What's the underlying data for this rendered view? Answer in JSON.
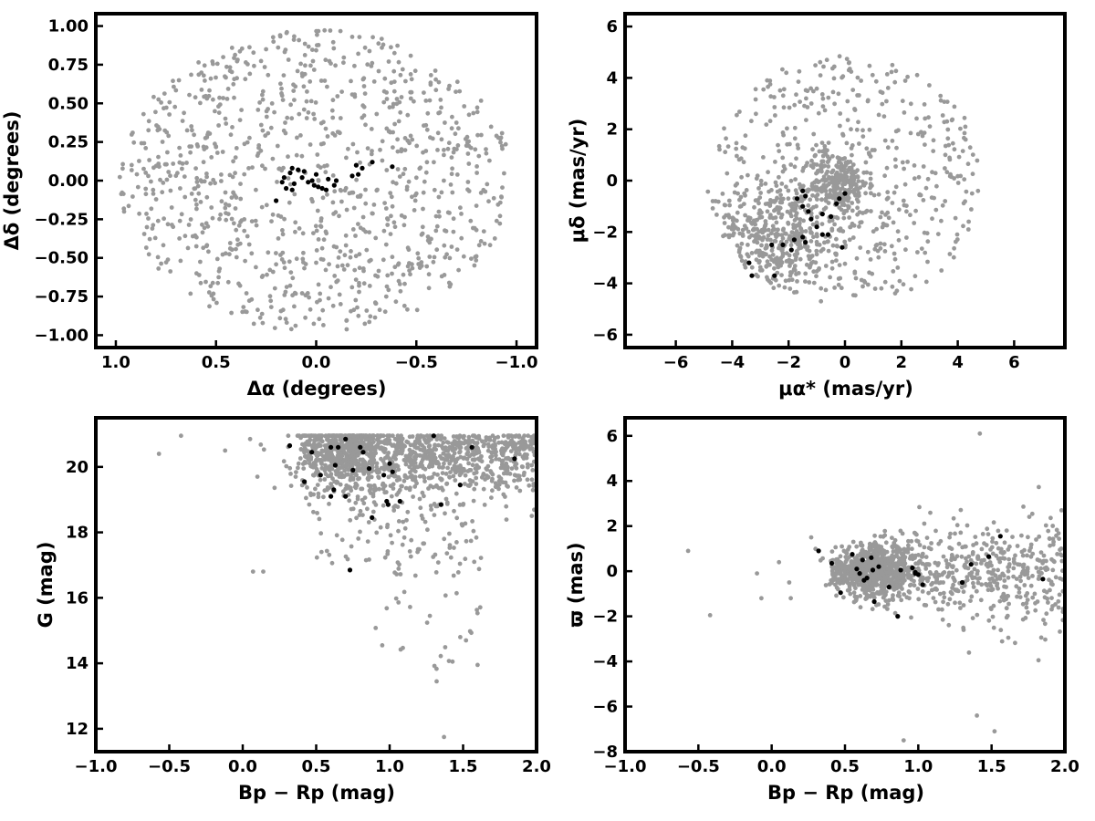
{
  "colors": {
    "field_points": "#999999",
    "member_points": "#000000",
    "axes": "#000000"
  },
  "chart_data": [
    {
      "type": "scatter",
      "title": "",
      "xlabel": "Δα (degrees)",
      "ylabel": "Δδ (degrees)",
      "xlim": [
        1.1,
        -1.1
      ],
      "ylim": [
        -1.08,
        1.08
      ],
      "x_reversed": true,
      "xticks": [
        1.0,
        0.5,
        0.0,
        -0.5,
        -1.0
      ],
      "xtick_labels": [
        "1.0",
        "0.5",
        "0.0",
        "−0.5",
        "−1.0"
      ],
      "yticks": [
        1.0,
        0.75,
        0.5,
        0.25,
        0.0,
        -0.25,
        -0.5,
        -0.75,
        -1.0
      ],
      "ytick_labels": [
        "1.00",
        "0.75",
        "0.50",
        "0.25",
        "0.00",
        "−0.25",
        "−0.50",
        "−0.75",
        "−1.00"
      ],
      "grid": false,
      "series": [
        {
          "role": "field",
          "color": "#999999",
          "x": [],
          "y": []
        },
        {
          "role": "members",
          "color": "#000000",
          "x": [
            0.17,
            0.15,
            0.13,
            0.12,
            0.09,
            0.07,
            0.06,
            0.04,
            0.02,
            0.01,
            0.0,
            -0.03,
            -0.05,
            -0.06,
            -0.09,
            -0.1,
            -0.18,
            -0.2,
            -0.21,
            -0.23,
            -0.28,
            -0.38,
            0.12,
            0.16,
            0.11,
            -0.01,
            0.2
          ],
          "y": [
            -0.01,
            -0.05,
            0.05,
            0.08,
            0.07,
            0.02,
            0.06,
            -0.01,
            0.0,
            -0.03,
            0.04,
            -0.05,
            -0.06,
            0.01,
            -0.03,
            0.0,
            0.03,
            0.1,
            0.04,
            0.08,
            0.12,
            0.09,
            -0.06,
            0.02,
            -0.02,
            -0.04,
            -0.13
          ]
        }
      ]
    },
    {
      "type": "scatter",
      "title": "",
      "xlabel": "μα* (mas/yr)",
      "ylabel": "μδ (mas/yr)",
      "xlim": [
        -7.8,
        7.8
      ],
      "ylim": [
        -6.5,
        6.5
      ],
      "xticks": [
        -6,
        -4,
        -2,
        0,
        2,
        4,
        6
      ],
      "xtick_labels": [
        "−6",
        "−4",
        "−2",
        "0",
        "2",
        "4",
        "6"
      ],
      "yticks": [
        6,
        4,
        2,
        0,
        -2,
        -4,
        -6
      ],
      "ytick_labels": [
        "6",
        "4",
        "2",
        "0",
        "−2",
        "−4",
        "−6"
      ],
      "grid": false,
      "series": [
        {
          "role": "field",
          "color": "#999999",
          "x": [],
          "y": []
        },
        {
          "role": "members",
          "color": "#000000",
          "x": [
            -1.7,
            -1.5,
            -1.4,
            -1.3,
            -1.2,
            -1.5,
            -1.0,
            -0.8,
            -0.5,
            -0.3,
            -0.2,
            0.0,
            -0.1,
            -1.8,
            -2.2,
            -2.5,
            -3.3,
            -3.4,
            -1.9,
            -1.4,
            -0.8,
            -0.6,
            -1.5,
            -2.6
          ],
          "y": [
            -0.7,
            -0.4,
            -0.6,
            -1.2,
            -1.5,
            -2.2,
            -1.8,
            -1.3,
            -1.4,
            -0.9,
            -0.7,
            -0.5,
            -2.6,
            -2.3,
            -2.5,
            -3.7,
            -3.7,
            -3.2,
            -2.7,
            -2.4,
            -2.1,
            -2.1,
            -1.0,
            -2.5
          ]
        }
      ]
    },
    {
      "type": "scatter",
      "title": "",
      "xlabel": "Bp − Rp (mag)",
      "ylabel": "G (mag)",
      "xlim": [
        -1.0,
        2.0
      ],
      "ylim": [
        11.3,
        21.5
      ],
      "xticks": [
        -1.0,
        -0.5,
        0.0,
        0.5,
        1.0,
        1.5,
        2.0
      ],
      "xtick_labels": [
        "−1.0",
        "−0.5",
        "0.0",
        "0.5",
        "1.0",
        "1.5",
        "2.0"
      ],
      "yticks": [
        12,
        14,
        16,
        18,
        20
      ],
      "ytick_labels": [
        "12",
        "14",
        "16",
        "18",
        "20"
      ],
      "grid": false,
      "series": [
        {
          "role": "field",
          "color": "#999999",
          "x": [],
          "y": []
        },
        {
          "role": "members",
          "color": "#000000",
          "x": [
            0.32,
            0.47,
            0.53,
            0.6,
            0.62,
            0.63,
            0.65,
            0.7,
            0.73,
            0.75,
            0.8,
            0.82,
            0.86,
            0.88,
            0.96,
            0.98,
            0.99,
            1.0,
            1.02,
            1.07,
            1.3,
            1.35,
            1.48,
            1.56,
            1.85,
            0.42,
            0.6,
            0.7
          ],
          "y": [
            20.65,
            20.45,
            19.75,
            20.6,
            19.3,
            20.05,
            20.6,
            20.85,
            16.85,
            19.9,
            20.6,
            20.45,
            19.95,
            18.45,
            19.75,
            18.95,
            18.85,
            20.1,
            19.85,
            18.95,
            20.95,
            18.85,
            19.45,
            20.6,
            20.25,
            19.55,
            19.1,
            19.1
          ]
        }
      ]
    },
    {
      "type": "scatter",
      "title": "",
      "xlabel": "Bp − Rp (mag)",
      "ylabel": "ϖ (mas)",
      "xlim": [
        -1.0,
        2.0
      ],
      "ylim": [
        -8.0,
        6.8
      ],
      "xticks": [
        -1.0,
        -0.5,
        0.0,
        0.5,
        1.0,
        1.5,
        2.0
      ],
      "xtick_labels": [
        "−1.0",
        "−0.5",
        "0.0",
        "0.5",
        "1.0",
        "1.5",
        "2.0"
      ],
      "yticks": [
        6,
        4,
        2,
        0,
        -2,
        -4,
        -6,
        -8
      ],
      "ytick_labels": [
        "6",
        "4",
        "2",
        "0",
        "−2",
        "−4",
        "−6",
        "−8"
      ],
      "grid": false,
      "series": [
        {
          "role": "field",
          "color": "#999999",
          "x": [],
          "y": []
        },
        {
          "role": "members",
          "color": "#000000",
          "x": [
            0.32,
            0.41,
            0.47,
            0.55,
            0.6,
            0.62,
            0.63,
            0.65,
            0.68,
            0.7,
            0.73,
            0.8,
            0.86,
            0.88,
            0.96,
            0.98,
            1.0,
            1.03,
            1.3,
            1.36,
            1.48,
            1.56,
            1.85,
            0.58,
            0.69,
            0.98
          ],
          "y": [
            0.9,
            0.35,
            -0.95,
            0.75,
            -0.1,
            0.5,
            -0.4,
            -0.3,
            0.6,
            -1.35,
            0.2,
            -0.7,
            -2.0,
            0.05,
            0.15,
            -0.1,
            -0.15,
            -0.6,
            -0.5,
            0.3,
            0.65,
            1.55,
            -0.35,
            0.1,
            0.05,
            -0.05
          ]
        }
      ]
    }
  ]
}
